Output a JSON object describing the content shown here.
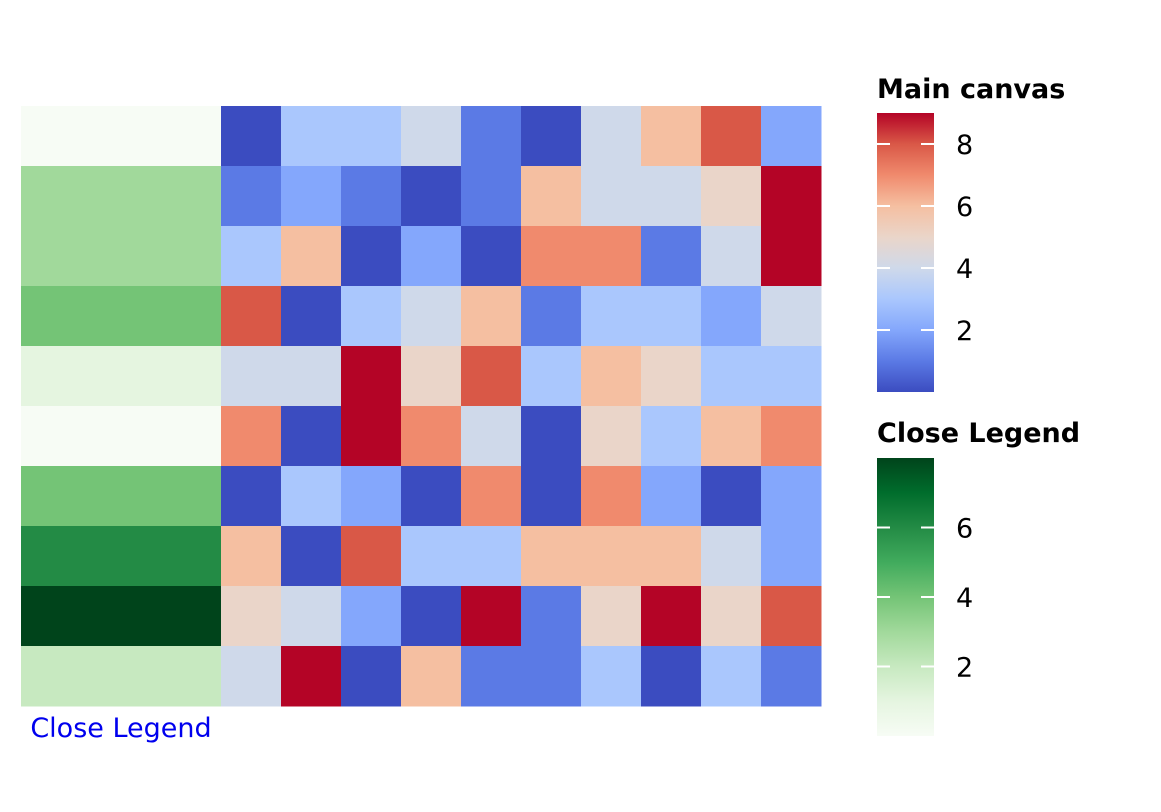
{
  "chart_data": [
    {
      "type": "heatmap",
      "title": "",
      "rows": 10,
      "cols": 10,
      "values": [
        [
          0,
          3,
          3,
          4,
          1,
          0,
          4,
          6,
          8,
          2
        ],
        [
          1,
          2,
          1,
          0,
          1,
          6,
          4,
          4,
          5,
          9
        ],
        [
          3,
          6,
          0,
          2,
          0,
          7,
          7,
          1,
          4,
          9
        ],
        [
          8,
          0,
          3,
          4,
          6,
          1,
          3,
          3,
          2,
          4
        ],
        [
          4,
          4,
          9,
          5,
          8,
          3,
          6,
          5,
          3,
          3
        ],
        [
          7,
          0,
          9,
          7,
          4,
          0,
          5,
          3,
          6,
          7
        ],
        [
          0,
          3,
          2,
          0,
          7,
          0,
          7,
          2,
          0,
          2
        ],
        [
          6,
          0,
          8,
          3,
          3,
          6,
          6,
          6,
          4,
          2
        ],
        [
          5,
          4,
          2,
          0,
          9,
          1,
          5,
          9,
          5,
          8
        ],
        [
          4,
          9,
          0,
          6,
          1,
          1,
          3,
          0,
          3,
          1
        ]
      ],
      "colormap": "coolwarm",
      "vmin": 0,
      "vmax": 9,
      "colorbar": {
        "title": "Main canvas",
        "ticks": [
          2,
          4,
          6,
          8
        ]
      }
    },
    {
      "type": "heatmap",
      "title": "",
      "rows": 10,
      "cols": 1,
      "values": [
        0,
        3,
        3,
        4,
        1,
        0,
        4,
        6,
        8,
        2
      ],
      "colormap": "greens",
      "vmin": 0,
      "vmax": 8,
      "xlabel": "Close Legend",
      "colorbar": {
        "title": "Close Legend",
        "ticks": [
          2,
          4,
          6
        ]
      }
    }
  ],
  "colors": {
    "coolwarm_stops": [
      "#3b4cc0",
      "#5b7ae5",
      "#84a7fc",
      "#aac7fd",
      "#cfd9ea",
      "#ead5c9",
      "#f5bfa1",
      "#f08a6d",
      "#d95847",
      "#b40426"
    ],
    "greens_stops": [
      "#f7fcf5",
      "#e5f5e0",
      "#c7e9c0",
      "#a1d99b",
      "#74c476",
      "#41ab5d",
      "#238b45",
      "#006d2c",
      "#00441b"
    ],
    "link": "#0000ee"
  }
}
